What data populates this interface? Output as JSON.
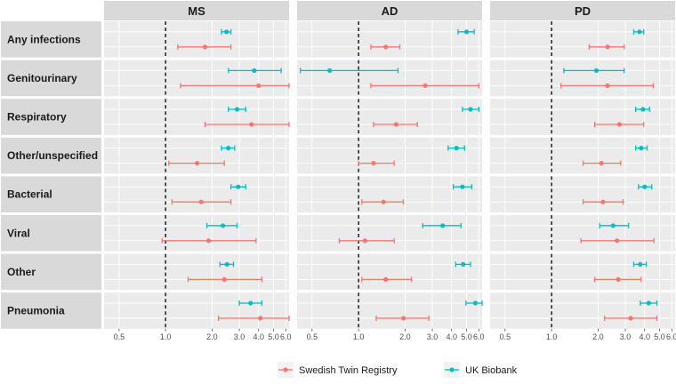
{
  "chart_data": {
    "type": "forest",
    "x_scale": "log",
    "reference_line": 1.0,
    "xlim": [
      0.4,
      6.3
    ],
    "x_ticks": [
      {
        "value": 0.5,
        "label": "0.5"
      },
      {
        "value": 1.0,
        "label": "1.0"
      },
      {
        "value": 2.0,
        "label": "2.0"
      },
      {
        "value": 3.0,
        "label": "3.0"
      },
      {
        "value": 4.0,
        "label": "4.0"
      },
      {
        "value": 5.0,
        "label": "5.0"
      },
      {
        "value": 6.0,
        "label": "6.0"
      }
    ],
    "panels": [
      "MS",
      "AD",
      "PD"
    ],
    "rows": [
      "Any infections",
      "Genitourinary",
      "Respiratory",
      "Other/unspecified",
      "Bacterial",
      "Viral",
      "Other",
      "Pneumonia"
    ],
    "series": [
      {
        "name": "UK Biobank",
        "color": "#00BFC4",
        "order": "top"
      },
      {
        "name": "Swedish Twin Registry",
        "color": "#F8766D",
        "order": "bottom"
      }
    ],
    "legend": {
      "position": "bottom",
      "entries": [
        "Swedish Twin Registry",
        "UK Biobank"
      ]
    },
    "grid": true,
    "estimates": {
      "MS": {
        "UK Biobank": [
          [
            2.48,
            2.3,
            2.65
          ],
          [
            3.75,
            2.55,
            5.6
          ],
          [
            2.9,
            2.55,
            3.3
          ],
          [
            2.55,
            2.3,
            2.8
          ],
          [
            2.95,
            2.65,
            3.3
          ],
          [
            2.35,
            1.85,
            2.9
          ],
          [
            2.5,
            2.25,
            2.75
          ],
          [
            3.55,
            3.0,
            4.2
          ]
        ],
        "Swedish Twin Registry": [
          [
            1.8,
            1.2,
            2.65
          ],
          [
            4.0,
            1.25,
            6.3
          ],
          [
            3.6,
            1.8,
            6.3
          ],
          [
            1.6,
            1.05,
            2.4
          ],
          [
            1.7,
            1.1,
            2.65
          ],
          [
            1.9,
            0.95,
            3.85
          ],
          [
            2.4,
            1.4,
            4.2
          ],
          [
            4.1,
            2.2,
            6.3
          ]
        ]
      },
      "AD": {
        "UK Biobank": [
          [
            5.0,
            4.4,
            5.6
          ],
          [
            0.65,
            0.42,
            1.8
          ],
          [
            5.3,
            4.7,
            6.0
          ],
          [
            4.3,
            3.8,
            4.85
          ],
          [
            4.7,
            4.1,
            5.4
          ],
          [
            3.5,
            2.6,
            4.6
          ],
          [
            4.75,
            4.25,
            5.3
          ],
          [
            5.7,
            4.95,
            6.3
          ]
        ],
        "Swedish Twin Registry": [
          [
            1.5,
            1.2,
            1.85
          ],
          [
            2.7,
            1.2,
            6.0
          ],
          [
            1.75,
            1.25,
            2.4
          ],
          [
            1.25,
            1.0,
            1.7
          ],
          [
            1.45,
            1.05,
            1.95
          ],
          [
            1.1,
            0.75,
            1.7
          ],
          [
            1.5,
            1.05,
            2.2
          ],
          [
            1.95,
            1.3,
            2.85
          ]
        ]
      },
      "PD": {
        "UK Biobank": [
          [
            3.7,
            3.4,
            3.95
          ],
          [
            1.95,
            1.2,
            2.95
          ],
          [
            3.9,
            3.5,
            4.3
          ],
          [
            3.8,
            3.5,
            4.15
          ],
          [
            4.0,
            3.65,
            4.45
          ],
          [
            2.5,
            2.05,
            3.15
          ],
          [
            3.75,
            3.4,
            4.1
          ],
          [
            4.25,
            3.75,
            4.8
          ]
        ],
        "Swedish Twin Registry": [
          [
            2.3,
            1.75,
            2.95
          ],
          [
            2.3,
            1.15,
            4.55
          ],
          [
            2.75,
            1.9,
            3.95
          ],
          [
            2.1,
            1.6,
            2.8
          ],
          [
            2.15,
            1.6,
            2.9
          ],
          [
            2.65,
            1.55,
            4.6
          ],
          [
            2.7,
            1.9,
            3.8
          ],
          [
            3.25,
            2.2,
            4.8
          ]
        ]
      }
    }
  }
}
